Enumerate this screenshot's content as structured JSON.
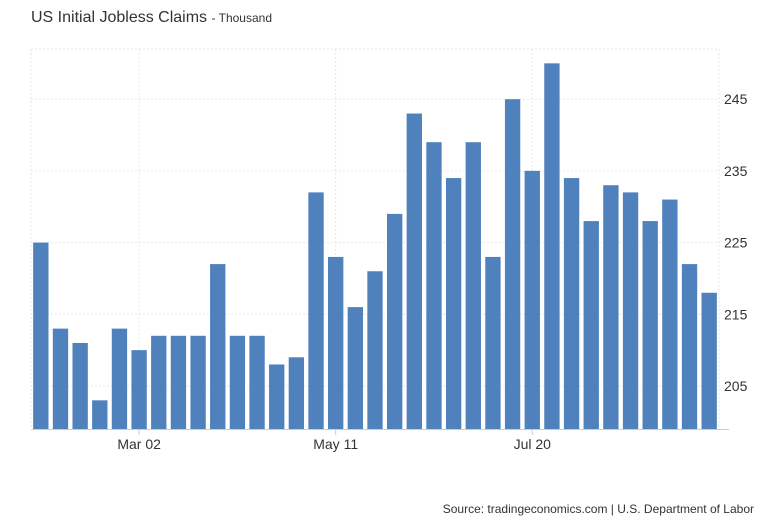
{
  "title": "US Initial Jobless Claims",
  "subtitle": "- Thousand",
  "source": "Source: tradingeconomics.com | U.S. Department of Labor",
  "colors": {
    "bar": "#4f81bd",
    "grid": "#e6e6e6",
    "axis": "#cccccc"
  },
  "chart_data": {
    "type": "bar",
    "title": "US Initial Jobless Claims",
    "subtitle": "- Thousand",
    "xlabel": "",
    "ylabel": "",
    "ylim": [
      199,
      252
    ],
    "y_ticks": [
      205,
      215,
      225,
      235,
      245
    ],
    "y_axis_position": "right",
    "x_tick_labels": [
      {
        "label": "Mar 02",
        "index": 5
      },
      {
        "label": "May 11",
        "index": 15
      },
      {
        "label": "Jul 20",
        "index": 25
      }
    ],
    "grid": true,
    "values": [
      225,
      213,
      211,
      203,
      213,
      210,
      212,
      212,
      212,
      222,
      212,
      212,
      208,
      209,
      232,
      223,
      216,
      221,
      229,
      243,
      239,
      234,
      239,
      223,
      245,
      235,
      250,
      234,
      228,
      233,
      232,
      228,
      231,
      222,
      218
    ]
  }
}
